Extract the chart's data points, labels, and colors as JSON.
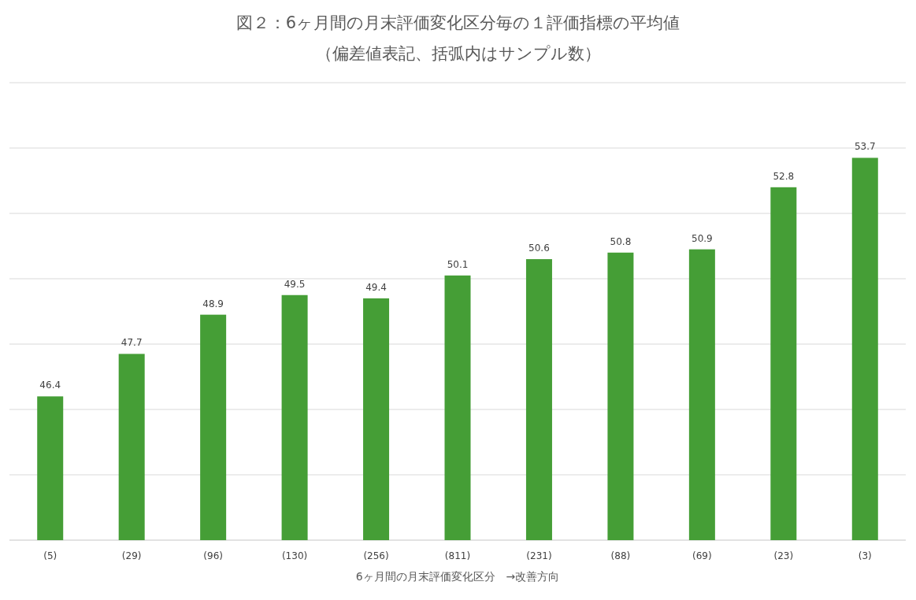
{
  "chart_data": {
    "type": "bar",
    "title": "図２：6ヶ月間の月末評価変化区分毎の１評価指標の平均値",
    "subtitle": "（偏差値表記、括弧内はサンプル数）",
    "xlabel": "6ヶ月間の月末評価変化区分　→改善方向",
    "categories": [
      "(5)",
      "(29)",
      "(96)",
      "(130)",
      "(256)",
      "(811)",
      "(231)",
      "(88)",
      "(69)",
      "(23)",
      "(3)"
    ],
    "series": [
      {
        "color": "#459e36",
        "values": [
          46.4,
          47.7,
          48.9,
          49.5,
          49.4,
          50.1,
          50.6,
          50.8,
          50.9,
          52.8,
          53.7
        ]
      }
    ],
    "ylim": [
      42,
      56
    ],
    "yticks": [
      {
        "value": 42,
        "label": null
      },
      {
        "value": 44,
        "label": null
      },
      {
        "value": 46,
        "label": null
      },
      {
        "value": 48,
        "label": null
      },
      {
        "value": 50,
        "label": null
      },
      {
        "value": 52,
        "label": null
      },
      {
        "value": 54,
        "label": null
      },
      {
        "value": 56,
        "label": null
      }
    ],
    "grid": "y",
    "data_labels": true,
    "tick_labels": "x"
  }
}
